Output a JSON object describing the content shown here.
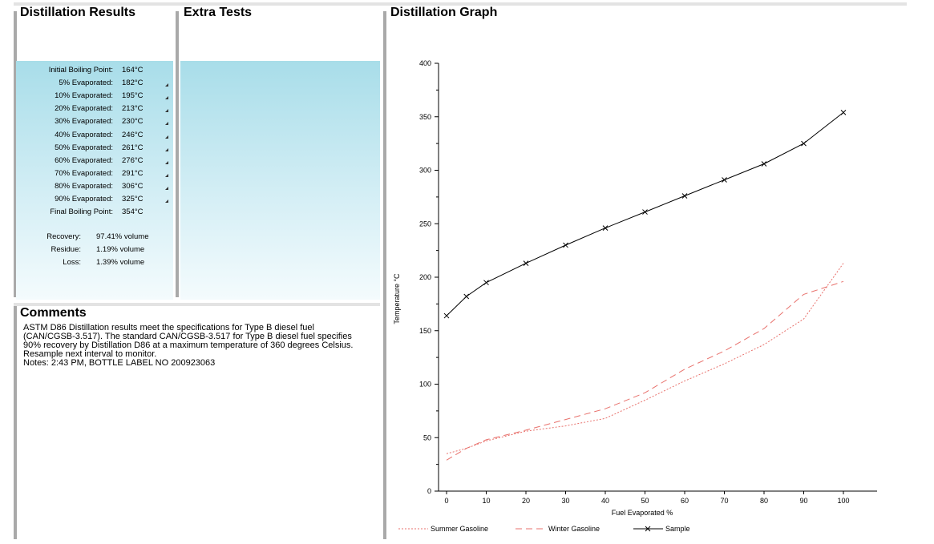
{
  "distillation_results": {
    "title": "Distillation Results",
    "rows": [
      {
        "label": "Initial Boiling Point:",
        "value": "164°C",
        "mark": false
      },
      {
        "label": "5% Evaporated:",
        "value": "182°C",
        "mark": true
      },
      {
        "label": "10% Evaporated:",
        "value": "195°C",
        "mark": true
      },
      {
        "label": "20% Evaporated:",
        "value": "213°C",
        "mark": true
      },
      {
        "label": "30% Evaporated:",
        "value": "230°C",
        "mark": true
      },
      {
        "label": "40% Evaporated:",
        "value": "246°C",
        "mark": true
      },
      {
        "label": "50% Evaporated:",
        "value": "261°C",
        "mark": true
      },
      {
        "label": "60% Evaporated:",
        "value": "276°C",
        "mark": true
      },
      {
        "label": "70% Evaporated:",
        "value": "291°C",
        "mark": true
      },
      {
        "label": "80% Evaporated:",
        "value": "306°C",
        "mark": true
      },
      {
        "label": "90% Evaporated:",
        "value": "325°C",
        "mark": true
      },
      {
        "label": "Final Boiling Point:",
        "value": "354°C",
        "mark": false
      }
    ],
    "recovery": [
      {
        "label": "Recovery:",
        "value": "97.41% volume"
      },
      {
        "label": "Residue:",
        "value": "1.19% volume"
      },
      {
        "label": "Loss:",
        "value": "1.39% volume"
      }
    ]
  },
  "extra_tests": {
    "title": "Extra Tests"
  },
  "comments": {
    "title": "Comments",
    "lines": [
      "ASTM D86 Distillation results meet the specifications for Type B diesel fuel",
      "(CAN/CGSB-3.517). The standard CAN/CGSB-3.517 for Type B diesel fuel specifies",
      "90% recovery by Distillation D86 at a maximum temperature of 360 degrees Celsius.",
      "Resample next interval to monitor.",
      "Notes: 2:43 PM, BOTTLE LABEL NO 200923063"
    ]
  },
  "graph": {
    "title": "Distillation Graph"
  },
  "chart_data": {
    "type": "line",
    "title": "",
    "xlabel": "Fuel Evaporated %",
    "ylabel": "Temperature °C",
    "x": [
      0,
      5,
      10,
      20,
      30,
      40,
      50,
      60,
      70,
      80,
      90,
      100
    ],
    "xticks": [
      0,
      10,
      20,
      30,
      40,
      50,
      60,
      70,
      80,
      90,
      100
    ],
    "yticks": [
      0,
      50,
      100,
      150,
      200,
      250,
      300,
      350,
      400
    ],
    "xlim": [
      0,
      100
    ],
    "ylim": [
      0,
      400
    ],
    "grid": false,
    "legend": "bottom",
    "series": [
      {
        "name": "Summer Gasoline",
        "color": "#e8716c",
        "dash": "dotted",
        "values": [
          35,
          40,
          47,
          56,
          61,
          68,
          85,
          103,
          119,
          137,
          161,
          213
        ]
      },
      {
        "name": "Winter Gasoline",
        "color": "#e8716c",
        "dash": "dashed",
        "values": [
          29,
          40,
          48,
          57,
          67,
          77,
          92,
          114,
          131,
          152,
          184,
          196
        ]
      },
      {
        "name": "Sample",
        "color": "#000000",
        "dash": "solid",
        "marker": "x",
        "values": [
          164,
          182,
          195,
          213,
          230,
          246,
          261,
          276,
          291,
          306,
          325,
          354
        ]
      }
    ]
  }
}
